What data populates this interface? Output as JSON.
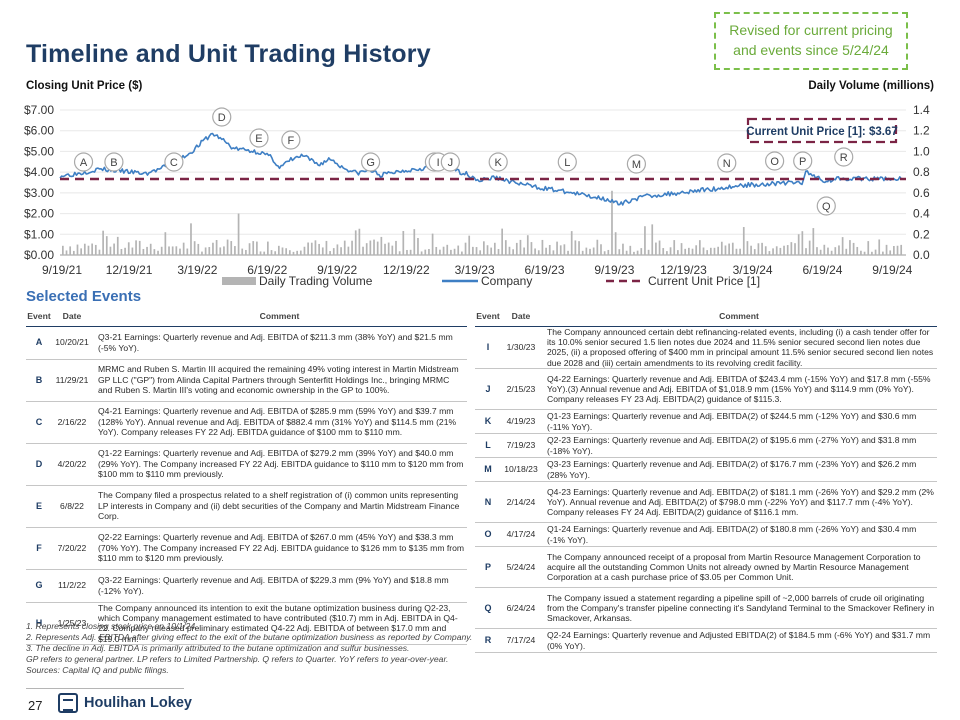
{
  "page": {
    "title": "Timeline and Unit Trading History",
    "revised_note": "Revised for current pricing and events since 5/24/24",
    "selected_events_title": "Selected Events",
    "page_number": "27",
    "logo_text": "Houlihan Lokey"
  },
  "chart_data": {
    "type": "line",
    "title": "",
    "ylabel": "Closing Unit Price ($)",
    "y2label": "Daily Volume (millions)",
    "xlabel": "",
    "x_ticks": [
      "9/19/21",
      "12/19/21",
      "3/19/22",
      "6/19/22",
      "9/19/22",
      "12/19/22",
      "3/19/23",
      "6/19/23",
      "9/19/23",
      "12/19/23",
      "3/19/24",
      "6/19/24",
      "9/19/24"
    ],
    "y_ticks": [
      "$0.00",
      "$1.00",
      "$2.00",
      "$3.00",
      "$4.00",
      "$5.00",
      "$6.00",
      "$7.00"
    ],
    "y2_ticks": [
      "0.0",
      "0.2",
      "0.4",
      "0.6",
      "0.8",
      "1.0",
      "1.2",
      "1.4"
    ],
    "ylim": [
      0,
      7
    ],
    "y2lim": [
      0,
      1.4
    ],
    "legend_placement": "bottom",
    "legend": [
      "Daily Trading Volume",
      "Company",
      "Current Unit Price [1]"
    ],
    "current_price": 3.67,
    "current_price_label": "Current Unit Price [1]: $3.67",
    "series": [
      {
        "name": "Company",
        "color": "#3e7fc4",
        "points": [
          [
            "2021-09-19",
            3.82
          ],
          [
            "2021-10-15",
            3.95
          ],
          [
            "2021-11-10",
            4.15
          ],
          [
            "2021-12-10",
            4.05
          ],
          [
            "2022-01-10",
            3.92
          ],
          [
            "2022-02-01",
            4.2
          ],
          [
            "2022-02-20",
            4.55
          ],
          [
            "2022-03-10",
            4.95
          ],
          [
            "2022-03-28",
            5.55
          ],
          [
            "2022-04-08",
            5.85
          ],
          [
            "2022-04-20",
            5.6
          ],
          [
            "2022-05-05",
            5.15
          ],
          [
            "2022-05-25",
            5.05
          ],
          [
            "2022-06-10",
            4.95
          ],
          [
            "2022-06-25",
            4.7
          ],
          [
            "2022-07-05",
            4.2
          ],
          [
            "2022-07-20",
            4.6
          ],
          [
            "2022-08-05",
            4.8
          ],
          [
            "2022-08-25",
            4.35
          ],
          [
            "2022-09-10",
            4.65
          ],
          [
            "2022-09-25",
            4.25
          ],
          [
            "2022-10-15",
            3.95
          ],
          [
            "2022-11-01",
            4.1
          ],
          [
            "2022-11-15",
            3.85
          ],
          [
            "2022-12-10",
            4.05
          ],
          [
            "2023-01-10",
            4.2
          ],
          [
            "2023-02-01",
            4.35
          ],
          [
            "2023-02-20",
            4.1
          ],
          [
            "2023-03-10",
            3.9
          ],
          [
            "2023-03-25",
            3.6
          ],
          [
            "2023-04-15",
            3.75
          ],
          [
            "2023-05-10",
            3.5
          ],
          [
            "2023-06-05",
            3.3
          ],
          [
            "2023-07-01",
            3.15
          ],
          [
            "2023-08-01",
            2.95
          ],
          [
            "2023-08-25",
            2.8
          ],
          [
            "2023-09-10",
            2.7
          ],
          [
            "2023-09-26",
            2.42
          ],
          [
            "2023-10-10",
            2.65
          ],
          [
            "2023-11-01",
            2.85
          ],
          [
            "2023-12-01",
            2.95
          ],
          [
            "2024-01-01",
            3.1
          ],
          [
            "2024-02-01",
            3.2
          ],
          [
            "2024-03-01",
            3.35
          ],
          [
            "2024-04-01",
            3.42
          ],
          [
            "2024-05-01",
            3.48
          ],
          [
            "2024-05-23",
            3.5
          ],
          [
            "2024-05-28",
            3.98
          ],
          [
            "2024-06-10",
            3.8
          ],
          [
            "2024-06-24",
            3.55
          ],
          [
            "2024-07-10",
            3.72
          ],
          [
            "2024-08-01",
            3.7
          ],
          [
            "2024-08-20",
            3.65
          ],
          [
            "2024-09-10",
            3.7
          ],
          [
            "2024-10-01",
            3.67
          ]
        ]
      }
    ],
    "events": [
      {
        "label": "A",
        "date": "2021-10-20"
      },
      {
        "label": "B",
        "date": "2021-11-29"
      },
      {
        "label": "C",
        "date": "2022-02-16"
      },
      {
        "label": "D",
        "date": "2022-04-20"
      },
      {
        "label": "E",
        "date": "2022-06-08"
      },
      {
        "label": "F",
        "date": "2022-07-20"
      },
      {
        "label": "G",
        "date": "2022-11-02"
      },
      {
        "label": "H",
        "date": "2023-01-25"
      },
      {
        "label": "I",
        "date": "2023-01-30"
      },
      {
        "label": "J",
        "date": "2023-02-15"
      },
      {
        "label": "K",
        "date": "2023-04-19"
      },
      {
        "label": "L",
        "date": "2023-07-19"
      },
      {
        "label": "M",
        "date": "2023-10-18"
      },
      {
        "label": "N",
        "date": "2024-02-14"
      },
      {
        "label": "O",
        "date": "2024-04-17"
      },
      {
        "label": "P",
        "date": "2024-05-24"
      },
      {
        "label": "Q",
        "date": "2024-06-24"
      },
      {
        "label": "R",
        "date": "2024-07-17"
      }
    ]
  },
  "table_headers": {
    "event": "Event",
    "date": "Date",
    "comment": "Comment"
  },
  "events_left": [
    {
      "event": "A",
      "date": "10/20/21",
      "comment": "Q3-21 Earnings: Quarterly revenue and Adj. EBITDA of $211.3 mm (38% YoY) and $21.5 mm (-5% YoY)."
    },
    {
      "event": "B",
      "date": "11/29/21",
      "comment": "MRMC and Ruben S. Martin III acquired the remaining 49% voting interest in Martin Midstream GP LLC (\"GP\") from Alinda Capital Partners through Senterfitt Holdings Inc., bringing MRMC and Ruben S. Martin III's voting and economic ownership in the GP to 100%."
    },
    {
      "event": "C",
      "date": "2/16/22",
      "comment": "Q4-21 Earnings: Quarterly revenue and Adj. EBITDA of $285.9 mm (59% YoY) and $39.7 mm (128% YoY). Annual revenue and Adj. EBITDA of $882.4 mm (31% YoY) and $114.5 mm (21% YoY). Company releases FY 22 Adj. EBITDA guidance of $100 mm to $110 mm."
    },
    {
      "event": "D",
      "date": "4/20/22",
      "comment": "Q1-22 Earnings: Quarterly revenue and Adj. EBITDA of $279.2 mm (39% YoY) and $40.0 mm (29% YoY). The Company increased FY 22 Adj. EBITDA guidance to $110 mm to $120 mm from $100 mm to $110 mm previously."
    },
    {
      "event": "E",
      "date": "6/8/22",
      "comment": "The Company filed a prospectus related to a shelf registration of (i) common units representing LP interests in Company and (ii) debt securities of the Company and Martin Midstream Finance Corp."
    },
    {
      "event": "F",
      "date": "7/20/22",
      "comment": "Q2-22 Earnings: Quarterly revenue and Adj. EBITDA of $267.0 mm (45% YoY) and $38.3 mm (70% YoY). The Company increased FY 22 Adj. EBITDA guidance to $126 mm to $135 mm from $110 mm to $120 mm previously."
    },
    {
      "event": "G",
      "date": "11/2/22",
      "comment": "Q3-22 Earnings: Quarterly revenue and Adj. EBITDA of $229.3 mm (9% YoY) and $18.8 mm (-12% YoY)."
    },
    {
      "event": "H",
      "date": "1/25/23",
      "comment": "The Company announced its intention to exit the butane optimization business during Q2-23, which Company management estimated to have contributed ($10.7) mm in Adj. EBITDA in Q4-22. Company released preliminary estimated Q4-22 Adj. EBITDA of between $17.0 mm and $19.0 mm."
    }
  ],
  "events_right": [
    {
      "event": "I",
      "date": "1/30/23",
      "comment": "The Company announced certain debt refinancing-related events, including (i) a cash tender offer for its 10.0% senior secured 1.5 lien notes due 2024 and 11.5% senior secured second lien notes due 2025, (ii) a proposed offering of $400 mm in principal amount 11.5% senior secured second lien notes due 2028 and (iii) certain amendments to its revolving credit facility."
    },
    {
      "event": "J",
      "date": "2/15/23",
      "comment": "Q4-22 Earnings: Quarterly revenue and Adj. EBITDA of $243.4 mm (-15% YoY) and $17.8 mm (-55% YoY).(3) Annual revenue and Adj. EBITDA of $1,018.9 mm (15% YoY) and $114.9 mm (0% YoY). Company releases FY 23 Adj. EBITDA(2) guidance of $115.3."
    },
    {
      "event": "K",
      "date": "4/19/23",
      "comment": "Q1-23 Earnings: Quarterly revenue and Adj. EBITDA(2) of $244.5 mm (-12% YoY) and $30.6 mm (-11% YoY)."
    },
    {
      "event": "L",
      "date": "7/19/23",
      "comment": "Q2-23 Earnings: Quarterly revenue and Adj. EBITDA(2) of $195.6 mm (-27% YoY) and $31.8 mm (-18% YoY)."
    },
    {
      "event": "M",
      "date": "10/18/23",
      "comment": "Q3-23 Earnings: Quarterly revenue and Adj. EBITDA(2) of $176.7 mm (-23% YoY) and $26.2 mm (28% YoY)."
    },
    {
      "event": "N",
      "date": "2/14/24",
      "comment": "Q4-23 Earnings: Quarterly revenue and Adj. EBITDA(2) of $181.1 mm (-26% YoY) and $29.2 mm (2% YoY). Annual revenue and Adj. EBITDA(2) of $798.0 mm (-22% YoY) and $117.7 mm (-4% YoY). Company releases FY 24 Adj. EBITDA(2) guidance of $116.1 mm."
    },
    {
      "event": "O",
      "date": "4/17/24",
      "comment": "Q1-24 Earnings: Quarterly revenue and Adj. EBITDA(2) of $180.8 mm (-26% YoY) and $30.4 mm (-1% YoY)."
    },
    {
      "event": "P",
      "date": "5/24/24",
      "comment": "The Company announced receipt of a proposal from Martin Resource Management Corporation to acquire all the outstanding Common Units not already owned by Martin Resource Management Corporation at a cash purchase price of $3.05 per Common Unit."
    },
    {
      "event": "Q",
      "date": "6/24/24",
      "comment": "The Company issued a statement regarding a pipeline spill of ~2,000 barrels of crude oil originating from the Company's transfer pipeline connecting it's Sandyland Terminal to the Smackover Refinery in Smackover, Arkansas."
    },
    {
      "event": "R",
      "date": "7/17/24",
      "comment": "Q2-24 Earnings: Quarterly revenue and Adjusted EBITDA(2) of $184.5 mm (-6% YoY) and $31.7 mm (0% YoY)."
    }
  ],
  "footnotes": [
    "1. Represents closing stock price on 10/1/24.",
    "2. Represents Adj. EBITDA after giving effect to the exit of the butane optimization business as reported by Company.",
    "3. The decline in Adj. EBITDA is primarily attributed to the butane optimization and sulfur businesses.",
    "GP refers to general partner. LP refers to Limited Partnership. Q refers to Quarter. YoY refers to year-over-year.",
    "Sources: Capital IQ and public filings."
  ],
  "colors": {
    "title": "#1f3d64",
    "accent": "#3a6fb4",
    "line": "#3e7fc4",
    "current_price": "#7b2445",
    "volume": "#b4b4b4",
    "revised_border": "#7bbf4a"
  }
}
